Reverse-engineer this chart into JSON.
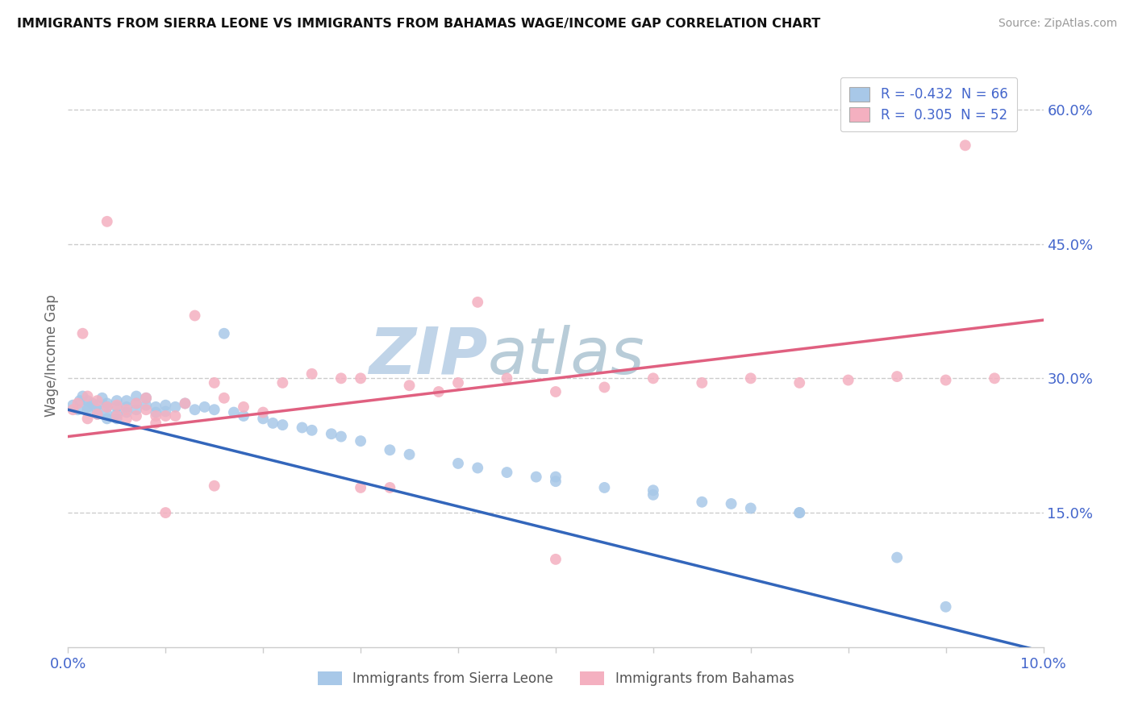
{
  "title": "IMMIGRANTS FROM SIERRA LEONE VS IMMIGRANTS FROM BAHAMAS WAGE/INCOME GAP CORRELATION CHART",
  "source": "Source: ZipAtlas.com",
  "ylabel": "Wage/Income Gap",
  "blue_r": "R = -0.432",
  "blue_n": "N = 66",
  "pink_r": "R =  0.305",
  "pink_n": "N = 52",
  "watermark_zip": "ZIP",
  "watermark_atlas": "atlas",
  "background_color": "#ffffff",
  "scatter_blue": "#a8c8e8",
  "scatter_pink": "#f4b0c0",
  "line_blue": "#3366bb",
  "line_pink": "#e06080",
  "axis_color": "#4466cc",
  "grid_color": "#cccccc",
  "watermark_color_zip": "#c0d4e8",
  "watermark_color_atlas": "#b8ccd8",
  "blue_line_x": [
    0.0,
    0.1
  ],
  "blue_line_y": [
    0.265,
    -0.005
  ],
  "pink_line_x": [
    0.0,
    0.1
  ],
  "pink_line_y": [
    0.235,
    0.365
  ],
  "xlim": [
    0.0,
    0.1
  ],
  "ylim": [
    0.0,
    0.65
  ],
  "yticks": [
    0.0,
    0.15,
    0.3,
    0.45,
    0.6
  ],
  "ytick_labels": [
    "",
    "15.0%",
    "30.0%",
    "45.0%",
    "60.0%"
  ],
  "blue_scatter_x": [
    0.0005,
    0.001,
    0.0012,
    0.0015,
    0.002,
    0.002,
    0.002,
    0.0025,
    0.003,
    0.003,
    0.003,
    0.0035,
    0.004,
    0.004,
    0.004,
    0.004,
    0.005,
    0.005,
    0.005,
    0.005,
    0.006,
    0.006,
    0.006,
    0.007,
    0.007,
    0.007,
    0.008,
    0.008,
    0.009,
    0.009,
    0.01,
    0.01,
    0.011,
    0.012,
    0.013,
    0.014,
    0.015,
    0.016,
    0.017,
    0.018,
    0.02,
    0.021,
    0.022,
    0.024,
    0.025,
    0.027,
    0.028,
    0.03,
    0.033,
    0.035,
    0.04,
    0.042,
    0.045,
    0.048,
    0.05,
    0.055,
    0.06,
    0.065,
    0.07,
    0.075,
    0.05,
    0.06,
    0.068,
    0.075,
    0.085,
    0.09
  ],
  "blue_scatter_y": [
    0.27,
    0.265,
    0.275,
    0.28,
    0.268,
    0.275,
    0.265,
    0.272,
    0.27,
    0.265,
    0.26,
    0.278,
    0.272,
    0.268,
    0.26,
    0.255,
    0.275,
    0.268,
    0.26,
    0.255,
    0.275,
    0.268,
    0.262,
    0.28,
    0.272,
    0.265,
    0.278,
    0.27,
    0.268,
    0.262,
    0.27,
    0.263,
    0.268,
    0.272,
    0.265,
    0.268,
    0.265,
    0.35,
    0.262,
    0.258,
    0.255,
    0.25,
    0.248,
    0.245,
    0.242,
    0.238,
    0.235,
    0.23,
    0.22,
    0.215,
    0.205,
    0.2,
    0.195,
    0.19,
    0.185,
    0.178,
    0.17,
    0.162,
    0.155,
    0.15,
    0.19,
    0.175,
    0.16,
    0.15,
    0.1,
    0.045
  ],
  "pink_scatter_x": [
    0.0005,
    0.001,
    0.0015,
    0.002,
    0.002,
    0.003,
    0.003,
    0.004,
    0.004,
    0.005,
    0.005,
    0.006,
    0.006,
    0.007,
    0.007,
    0.008,
    0.008,
    0.009,
    0.009,
    0.01,
    0.011,
    0.012,
    0.013,
    0.015,
    0.016,
    0.018,
    0.02,
    0.022,
    0.025,
    0.028,
    0.03,
    0.033,
    0.035,
    0.038,
    0.04,
    0.042,
    0.045,
    0.05,
    0.055,
    0.06,
    0.065,
    0.07,
    0.075,
    0.08,
    0.085,
    0.09,
    0.092,
    0.095,
    0.01,
    0.015,
    0.03,
    0.05
  ],
  "pink_scatter_y": [
    0.265,
    0.272,
    0.35,
    0.28,
    0.255,
    0.275,
    0.26,
    0.268,
    0.475,
    0.27,
    0.258,
    0.265,
    0.255,
    0.272,
    0.258,
    0.278,
    0.265,
    0.258,
    0.25,
    0.258,
    0.258,
    0.272,
    0.37,
    0.18,
    0.278,
    0.268,
    0.262,
    0.295,
    0.305,
    0.3,
    0.3,
    0.178,
    0.292,
    0.285,
    0.295,
    0.385,
    0.3,
    0.285,
    0.29,
    0.3,
    0.295,
    0.3,
    0.295,
    0.298,
    0.302,
    0.298,
    0.56,
    0.3,
    0.15,
    0.295,
    0.178,
    0.098
  ]
}
